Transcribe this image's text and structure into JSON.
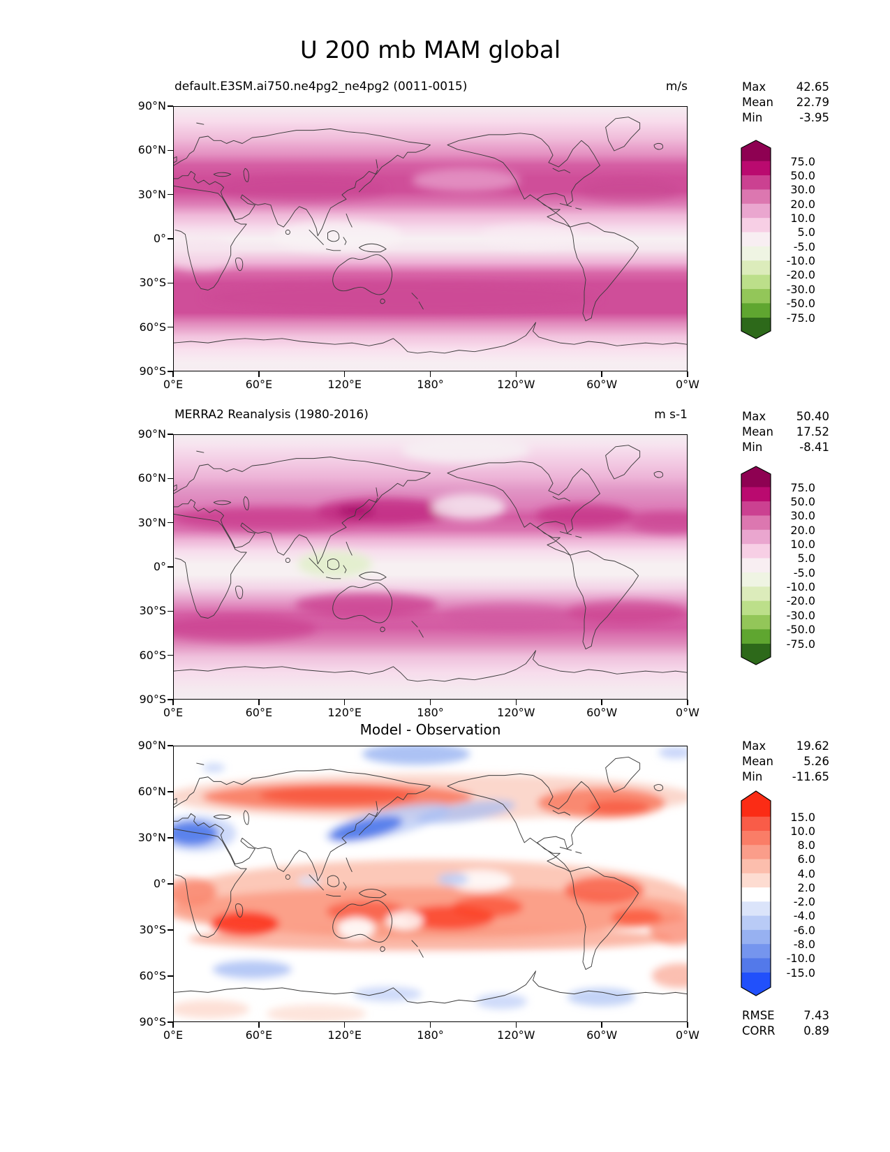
{
  "figure": {
    "title": "U 200 mb MAM global"
  },
  "stat_labels": {
    "max": "Max",
    "mean": "Mean",
    "min": "Min",
    "rmse": "RMSE",
    "corr": "CORR"
  },
  "axes": {
    "x_ticks": [
      "0°E",
      "60°E",
      "120°E",
      "180°",
      "120°W",
      "60°W",
      "0°W"
    ],
    "y_ticks": [
      "90°N",
      "60°N",
      "30°N",
      "0°",
      "30°S",
      "60°S",
      "90°S"
    ]
  },
  "chart_data": [
    {
      "type": "heatmap",
      "subtype": "filled-contour global latitude-longitude map with coastlines",
      "panel": "model",
      "title": "default.E3SM.ai750.ne4pg2_ne4pg2 (0011-0015)",
      "units": "m/s",
      "stats": {
        "max": "42.65",
        "mean": "22.79",
        "min": "-3.95"
      },
      "xlabel": "",
      "ylabel": "",
      "pattern": "Pink/magenta zonal bands: subtropical jet maxima (30-50 m/s) near 30N and 20-50S spanning all longitudes; near-zero whitish band at the equator and poles.",
      "colorbar": {
        "extend": "both",
        "levels": [
          "75.0",
          "50.0",
          "30.0",
          "20.0",
          "10.0",
          "5.0",
          "-5.0",
          "-10.0",
          "-20.0",
          "-30.0",
          "-50.0",
          "-75.0"
        ],
        "colors": [
          "#8e0152",
          "#ba0a6f",
          "#cb4191",
          "#dc77b0",
          "#eaa6cf",
          "#f7cfe5",
          "#f8eef2",
          "#eff4e3",
          "#dcecbb",
          "#bcdf8a",
          "#93c659",
          "#5fa630",
          "#2d691a"
        ]
      }
    },
    {
      "type": "heatmap",
      "subtype": "filled-contour global latitude-longitude map with coastlines",
      "panel": "observation",
      "title": "MERRA2 Reanalysis (1980-2016)",
      "units": "m s-1",
      "stats": {
        "max": "50.40",
        "mean": "17.52",
        "min": "-8.41"
      },
      "xlabel": "",
      "ylabel": "",
      "pattern": "Jet cores >50 m/s near Japan and over the N Atlantic around 30N; wavy southern-hemisphere jet band 20-50S; weak easterlies (light green, -5 to -10 m/s) over Indonesia at the equator.",
      "colorbar": {
        "extend": "both",
        "levels": [
          "75.0",
          "50.0",
          "30.0",
          "20.0",
          "10.0",
          "5.0",
          "-5.0",
          "-10.0",
          "-20.0",
          "-30.0",
          "-50.0",
          "-75.0"
        ],
        "colors": [
          "#8e0152",
          "#ba0a6f",
          "#cb4191",
          "#dc77b0",
          "#eaa6cf",
          "#f7cfe5",
          "#f8eef2",
          "#eff4e3",
          "#dcecbb",
          "#bcdf8a",
          "#93c659",
          "#5fa630",
          "#2d691a"
        ]
      }
    },
    {
      "type": "heatmap",
      "subtype": "filled-contour global difference map with coastlines",
      "panel": "difference",
      "title": "Model - Observation",
      "units": "",
      "stats": {
        "max": "19.62",
        "mean": "5.26",
        "min": "-11.65",
        "rmse": "7.43",
        "corr": "0.89"
      },
      "xlabel": "",
      "ylabel": "",
      "pattern": "Broad positive (red) bias across the tropics/subtropics and 45-65N; negative (blue) bias along 30-40N from the Mediterranean and over Japan into the central Pacific, plus blue patches near the poles and 50-65S.",
      "colorbar": {
        "extend": "both",
        "levels": [
          "15.0",
          "10.0",
          "8.0",
          "6.0",
          "4.0",
          "2.0",
          "-2.0",
          "-4.0",
          "-6.0",
          "-8.0",
          "-10.0",
          "-15.0"
        ],
        "colors": [
          "#fb2c15",
          "#f95c48",
          "#fa7d67",
          "#fa9d8a",
          "#fcbead",
          "#fddcd1",
          "#ffffff",
          "#dbe4fa",
          "#b9cbf6",
          "#97b1f1",
          "#7595ee",
          "#5379ea",
          "#2150fb"
        ]
      }
    }
  ]
}
